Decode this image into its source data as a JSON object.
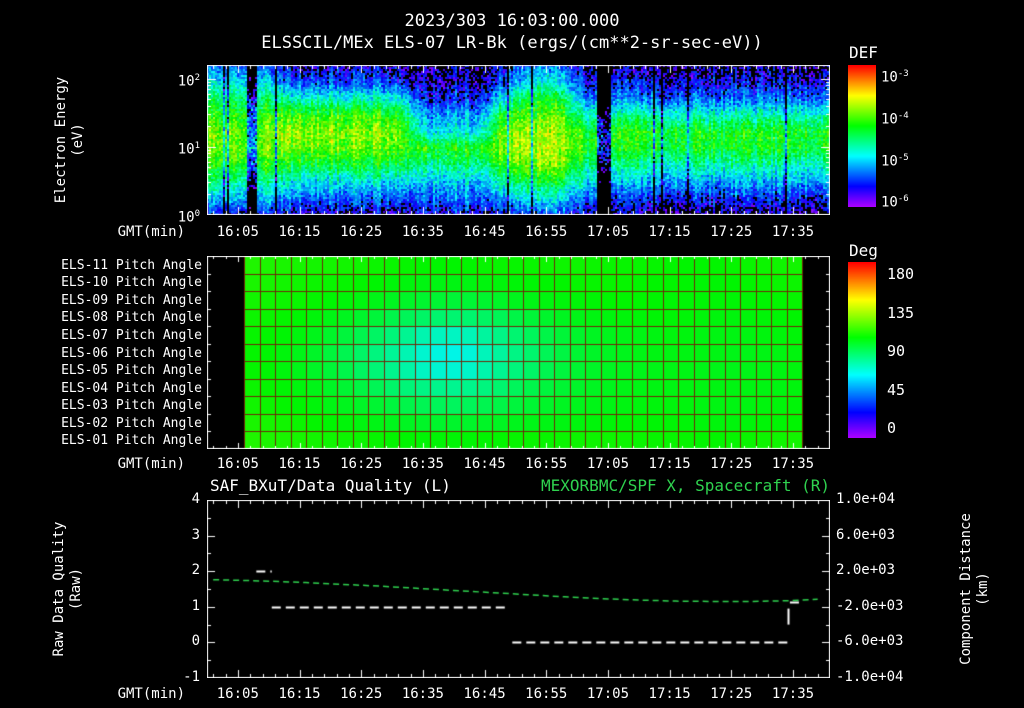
{
  "titles": {
    "datetime": "2023/303 16:03:00.000",
    "main": "ELSSCIL/MEx ELS-07 LR-Bk  (ergs/(cm**2-sr-sec-eV))"
  },
  "axes": {
    "gmt_label": "GMT(min)",
    "x_tick_labels": [
      "16:05",
      "16:15",
      "16:25",
      "16:35",
      "16:45",
      "16:55",
      "17:05",
      "17:15",
      "17:25",
      "17:35"
    ],
    "x_tick_minutes": [
      5,
      15,
      25,
      35,
      45,
      55,
      65,
      75,
      85,
      95
    ],
    "x_range_minutes": [
      0,
      101
    ]
  },
  "spectrogram": {
    "ylabel_line1": "Electron Energy",
    "ylabel_line2": "(eV)",
    "y_tick_exponents": [
      2,
      1,
      0
    ],
    "colorbar_title": "DEF",
    "colorbar_tick_exponents": [
      -3,
      -4,
      -5,
      -6
    ]
  },
  "pitch": {
    "row_labels": [
      "ELS-11 Pitch Angle",
      "ELS-10 Pitch Angle",
      "ELS-09 Pitch Angle",
      "ELS-08 Pitch Angle",
      "ELS-07 Pitch Angle",
      "ELS-06 Pitch Angle",
      "ELS-05 Pitch Angle",
      "ELS-04 Pitch Angle",
      "ELS-03 Pitch Angle",
      "ELS-02 Pitch Angle",
      "ELS-01 Pitch Angle"
    ],
    "colorbar_title": "Deg",
    "colorbar_ticks": [
      180,
      135,
      90,
      45,
      0
    ]
  },
  "bottom": {
    "title_left": "SAF_BXuT/Data Quality (L)",
    "title_right": "MEXORBMC/SPF X, Spacecraft (R)",
    "ylabel_line1": "Raw Data Quality",
    "ylabel_line2": "(Raw)",
    "left_ticks": [
      4,
      3,
      2,
      1,
      0,
      -1
    ],
    "right_ticks": [
      "1.0e+04",
      "6.0e+03",
      "2.0e+03",
      "-2.0e+03",
      "-6.0e+03",
      "-1.0e+04"
    ],
    "right_label_line1": "Component Distance",
    "right_label_line2": "(km)"
  },
  "colors": {
    "background": "#000000",
    "text": "#ffffff",
    "accent_green": "#2fd24f",
    "grid_maroon": "#6e2808",
    "frame": "#ffffff"
  },
  "chart_data": [
    {
      "type": "heatmap",
      "title": "ELS-07 electron energy spectrogram, DEF (ergs/(cm**2-sr-sec-eV))",
      "x_label": "GMT(min)",
      "x_range_gmt": [
        "16:00",
        "17:41"
      ],
      "y_label": "Electron Energy (eV)",
      "y_scale": "log",
      "energies_ev": [
        1.0,
        1.7,
        3.1,
        5.4,
        9.5,
        16.6,
        29,
        51,
        91,
        158
      ],
      "times_minutes_after_1600": [
        0,
        4.4,
        8.8,
        13.2,
        17.6,
        22,
        26.3,
        30.7,
        35.1,
        39.5,
        43.9,
        48.3,
        52.7,
        57.1,
        61.5,
        65.9,
        70.2,
        74.6,
        79,
        83.4,
        87.8,
        92.2,
        96.6,
        101
      ],
      "value": "log10 DEF",
      "value_range": [
        -6,
        -3
      ],
      "dropout_minutes": [
        [
          6.8,
          7.6
        ],
        [
          63.5,
          65
        ]
      ],
      "values_log10_def": [
        [
          -5.5,
          -5.5,
          -5.5,
          -5.7,
          -5.7,
          -5.7,
          -5.7,
          -5.7,
          -5.6,
          -5.6,
          -5.6,
          -5.6,
          -5.4,
          -5.4,
          -5.7,
          -5.8,
          -5.8,
          -5.8,
          -5.8,
          -5.8,
          -5.8,
          -5.8,
          -5.8,
          -5.8
        ],
        [
          -5.0,
          -5.0,
          -5.0,
          -5.3,
          -5.3,
          -5.3,
          -5.3,
          -5.3,
          -5.3,
          -5.3,
          -5.3,
          -5.1,
          -4.9,
          -4.9,
          -5.4,
          -5.5,
          -5.5,
          -5.5,
          -5.5,
          -5.5,
          -5.5,
          -5.5,
          -5.5,
          -5.5
        ],
        [
          -4.6,
          -4.6,
          -4.6,
          -4.9,
          -4.9,
          -4.9,
          -4.9,
          -4.9,
          -5.0,
          -5.0,
          -5.0,
          -4.7,
          -4.4,
          -4.4,
          -5.0,
          -5.1,
          -5.1,
          -5.1,
          -5.1,
          -5.1,
          -5.1,
          -5.1,
          -5.1,
          -5.1
        ],
        [
          -4.2,
          -4.2,
          -4.2,
          -4.4,
          -4.4,
          -4.4,
          -4.4,
          -4.4,
          -4.6,
          -4.6,
          -4.6,
          -4.2,
          -4.0,
          -4.0,
          -4.6,
          -4.7,
          -4.7,
          -4.7,
          -4.7,
          -4.7,
          -4.7,
          -4.7,
          -4.7,
          -4.7
        ],
        [
          -4.0,
          -4.0,
          -4.0,
          -4.05,
          -4.05,
          -4.05,
          -4.05,
          -4.05,
          -4.25,
          -4.25,
          -4.25,
          -4.0,
          -3.85,
          -3.85,
          -4.3,
          -4.35,
          -4.35,
          -4.35,
          -4.35,
          -4.35,
          -4.35,
          -4.35,
          -4.35,
          -4.35
        ],
        [
          -4.0,
          -4.0,
          -4.0,
          -3.95,
          -3.95,
          -3.95,
          -3.95,
          -3.95,
          -4.9,
          -4.9,
          -4.9,
          -4.0,
          -3.9,
          -3.9,
          -4.35,
          -4.3,
          -4.3,
          -4.3,
          -4.3,
          -4.3,
          -4.3,
          -4.3,
          -4.3,
          -4.3
        ],
        [
          -4.2,
          -4.2,
          -4.2,
          -4.2,
          -4.2,
          -4.2,
          -4.2,
          -4.2,
          -5.15,
          -5.15,
          -5.15,
          -4.3,
          -4.1,
          -4.1,
          -4.8,
          -4.75,
          -4.75,
          -4.75,
          -4.75,
          -4.75,
          -4.75,
          -4.75,
          -4.75,
          -4.75
        ],
        [
          -4.5,
          -4.5,
          -4.5,
          -4.8,
          -4.8,
          -4.8,
          -4.8,
          -4.8,
          -5.5,
          -5.5,
          -5.5,
          -4.9,
          -4.4,
          -4.4,
          -5.3,
          -5.3,
          -5.3,
          -5.3,
          -5.3,
          -5.3,
          -5.3,
          -5.3,
          -5.3,
          -5.3
        ],
        [
          -4.9,
          -4.9,
          -4.9,
          -5.4,
          -5.4,
          -5.4,
          -5.4,
          -5.4,
          -5.7,
          -5.7,
          -5.7,
          -5.4,
          -4.9,
          -4.9,
          -5.6,
          -5.6,
          -5.6,
          -5.6,
          -5.6,
          -5.6,
          -5.6,
          -5.6,
          -5.6,
          -5.6
        ],
        [
          -5.3,
          -5.3,
          -5.3,
          -5.7,
          -5.7,
          -5.7,
          -5.7,
          -5.7,
          -5.8,
          -5.8,
          -5.8,
          -5.6,
          -5.3,
          -5.3,
          -5.8,
          -5.8,
          -5.8,
          -5.8,
          -5.8,
          -5.8,
          -5.8,
          -5.8,
          -5.8,
          -5.8
        ]
      ]
    },
    {
      "type": "heatmap",
      "title": "ELS pitch angles",
      "unit": "deg",
      "range": [
        0,
        180
      ],
      "rows_top_to_bottom": [
        "ELS-11",
        "ELS-10",
        "ELS-09",
        "ELS-08",
        "ELS-07",
        "ELS-06",
        "ELS-05",
        "ELS-04",
        "ELS-03",
        "ELS-02",
        "ELS-01"
      ],
      "time_start_min": 6,
      "time_end_min": 96.5,
      "col_times_minutes_after_1600": [
        6,
        11,
        16,
        21,
        26,
        31,
        36,
        41,
        46,
        51,
        56,
        61,
        66,
        71,
        76,
        81,
        86,
        91,
        96
      ],
      "values_deg": [
        [
          108,
          107,
          106,
          106,
          105,
          104,
          103,
          103,
          104,
          104,
          105,
          105,
          104,
          104,
          103,
          103,
          104,
          105,
          106
        ],
        [
          107,
          106,
          105,
          104,
          103,
          101,
          100,
          100,
          101,
          102,
          103,
          104,
          104,
          103,
          103,
          102,
          103,
          104,
          105
        ],
        [
          106,
          105,
          104,
          102,
          100,
          97,
          95,
          94,
          96,
          99,
          101,
          102,
          103,
          103,
          102,
          102,
          102,
          103,
          104
        ],
        [
          105,
          104,
          102,
          99,
          95,
          90,
          86,
          85,
          88,
          93,
          97,
          100,
          101,
          102,
          102,
          101,
          101,
          102,
          103
        ],
        [
          104,
          103,
          100,
          95,
          89,
          82,
          73,
          72,
          80,
          87,
          93,
          97,
          99,
          100,
          101,
          100,
          100,
          101,
          102
        ],
        [
          104,
          102,
          98,
          92,
          85,
          77,
          68,
          66,
          76,
          84,
          91,
          96,
          98,
          100,
          100,
          100,
          99,
          100,
          101
        ],
        [
          104,
          102,
          98,
          93,
          86,
          79,
          70,
          69,
          78,
          85,
          92,
          96,
          98,
          99,
          100,
          99,
          99,
          100,
          101
        ],
        [
          105,
          103,
          100,
          96,
          91,
          85,
          81,
          80,
          84,
          90,
          94,
          97,
          99,
          100,
          100,
          100,
          100,
          100,
          101
        ],
        [
          106,
          104,
          102,
          99,
          96,
          92,
          89,
          88,
          91,
          94,
          97,
          99,
          100,
          101,
          101,
          100,
          100,
          101,
          102
        ],
        [
          107,
          106,
          104,
          102,
          100,
          98,
          96,
          96,
          97,
          99,
          100,
          101,
          102,
          102,
          102,
          101,
          101,
          102,
          103
        ],
        [
          108,
          107,
          106,
          105,
          104,
          103,
          102,
          102,
          103,
          104,
          104,
          105,
          105,
          104,
          104,
          103,
          104,
          105,
          106
        ]
      ]
    },
    {
      "type": "line",
      "x_axis": {
        "label": "GMT(min)",
        "range_minutes_after_1600": [
          0,
          101
        ]
      },
      "left_axis": {
        "label": "Raw Data Quality (Raw)",
        "range": [
          -1,
          4
        ]
      },
      "right_axis": {
        "label": "Component Distance (km)",
        "range": [
          -10000,
          10000
        ]
      },
      "series": [
        {
          "name": "SAF_BXuT/Data Quality (L)",
          "axis": "left",
          "color": "#ffffff",
          "style": "dashed-step",
          "segments": [
            {
              "t": [
                8,
                10.5
              ],
              "value": 2
            },
            {
              "t": [
                10.5,
                48.5
              ],
              "value": 1
            },
            {
              "t": [
                49.5,
                94.5
              ],
              "value": 0
            },
            {
              "t": [
                94.5,
                96.5
              ],
              "value": 1.13
            }
          ],
          "vertical_marks": [
            {
              "t": 94.2,
              "value_range": [
                0.5,
                0.95
              ]
            }
          ]
        },
        {
          "name": "MEXORBMC/SPF X, Spacecraft (R)",
          "axis": "right",
          "color": "#2fd24f",
          "style": "dashed",
          "t_minutes": [
            1,
            4,
            10,
            16,
            22,
            28,
            34,
            40,
            46,
            52,
            58,
            64,
            70,
            76,
            82,
            88,
            94,
            99
          ],
          "km": [
            1040,
            1000,
            880,
            720,
            520,
            320,
            80,
            -160,
            -400,
            -640,
            -880,
            -1080,
            -1240,
            -1360,
            -1400,
            -1400,
            -1320,
            -1160
          ]
        }
      ]
    }
  ]
}
